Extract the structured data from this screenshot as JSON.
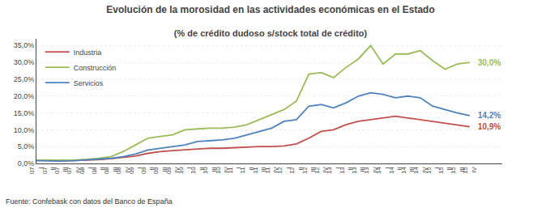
{
  "chart_data": {
    "type": "line",
    "title": "Evolución de la morosidad en las actividades económicas en el Estado",
    "subtitle": "(% de crédito dudoso s/stock total de crédito)",
    "footnote": "Fuente: Confebask con datos del Banco de España",
    "categories": [
      "07\nI",
      "07\nII",
      "07\nIII",
      "07\nIV",
      "08\nI",
      "08\nII",
      "08\nIII",
      "08\nIV",
      "09\nI",
      "09\nII",
      "09\nIII",
      "09\nIV",
      "10\nI",
      "10\nII",
      "10\nIII",
      "10\nIV",
      "11\nI",
      "11\nII",
      "11\nIII",
      "11\nIV",
      "12\nI",
      "12\nII",
      "12\nIII",
      "12\nIV",
      "13\nI",
      "13\nII",
      "13\nIII",
      "13\nIV",
      "14\nI",
      "14\nII",
      "14\nIII",
      "14\nIV",
      "15\nI",
      "15\nII",
      "15\nIII",
      "15\nIV"
    ],
    "series": [
      {
        "name": "Industria",
        "color": "#c0504d",
        "end_label": "10,9%",
        "values": [
          1.0,
          0.9,
          0.9,
          0.9,
          1.0,
          1.1,
          1.4,
          1.8,
          2.2,
          3.0,
          3.5,
          3.8,
          4.0,
          4.2,
          4.5,
          4.5,
          4.7,
          4.8,
          5.0,
          5.0,
          5.2,
          5.8,
          7.5,
          9.5,
          10.0,
          11.5,
          12.5,
          13.0,
          13.5,
          14.0,
          13.5,
          13.0,
          12.5,
          12.0,
          11.5,
          10.9
        ]
      },
      {
        "name": "Construcción",
        "color": "#9bbb59",
        "end_label": "30,0%",
        "values": [
          1.0,
          1.0,
          1.0,
          1.0,
          1.2,
          1.5,
          2.0,
          3.5,
          5.5,
          7.5,
          8.0,
          8.5,
          10.0,
          10.2,
          10.5,
          10.5,
          10.8,
          11.5,
          13.0,
          14.5,
          16.0,
          18.5,
          26.5,
          27.0,
          25.5,
          28.5,
          31.0,
          35.0,
          29.5,
          32.5,
          32.5,
          33.5,
          30.5,
          28.0,
          29.5,
          30.0
        ]
      },
      {
        "name": "Servicios",
        "color": "#4f81bd",
        "end_label": "14,2%",
        "values": [
          0.8,
          0.7,
          0.7,
          0.8,
          1.0,
          1.2,
          1.5,
          2.0,
          2.8,
          4.0,
          4.5,
          5.0,
          5.5,
          6.5,
          6.8,
          7.0,
          7.5,
          8.5,
          9.5,
          10.5,
          12.5,
          13.0,
          17.0,
          17.5,
          16.5,
          18.0,
          20.0,
          21.0,
          20.5,
          19.5,
          20.0,
          19.5,
          17.0,
          16.0,
          15.0,
          14.2
        ]
      }
    ],
    "ylim": [
      0,
      37
    ],
    "yticks": [
      {
        "value": 0.0,
        "label": "0,0%"
      },
      {
        "value": 5.0,
        "label": "5,0%"
      },
      {
        "value": 10.0,
        "label": "10,0%"
      },
      {
        "value": 15.0,
        "label": "15,0%"
      },
      {
        "value": 20.0,
        "label": "20,0%"
      },
      {
        "value": 25.0,
        "label": "25,0%"
      },
      {
        "value": 30.0,
        "label": "30,0%"
      },
      {
        "value": 35.0,
        "label": "35,0%"
      }
    ],
    "grid": true,
    "legend": "upper left"
  }
}
